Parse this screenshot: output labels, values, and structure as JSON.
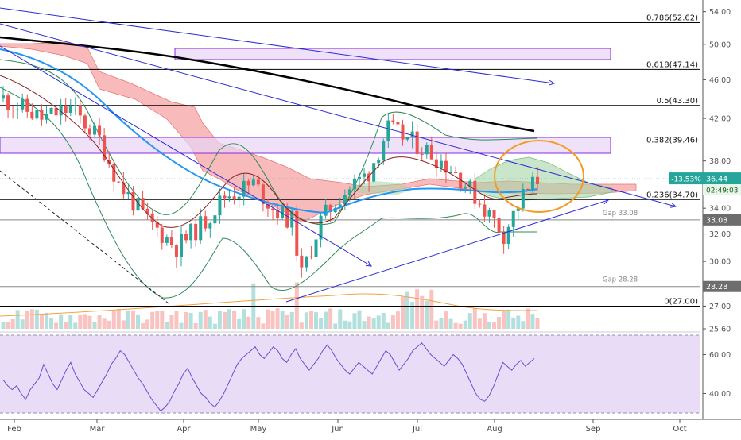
{
  "colors": {
    "background": "#ffffff",
    "candle_up": "#26a69a",
    "candle_down": "#ef5350",
    "ichimoku_bear_cloud": "#f5a3a3",
    "ichimoku_bull_cloud": "#a5d6a7",
    "bollinger": "#2e8b57",
    "ma_50": "#2196f3",
    "ma_200": "#000000",
    "ma_20": "#8b2020",
    "trendline": "#2b2bd6",
    "fib_line": "#000000",
    "box_fill": "#e8d6f5",
    "box_stroke": "#8a2be2",
    "ellipse": "#f59a23",
    "rsi_band": "#e9dcf7",
    "rsi_line": "#6a4dd1",
    "volume_ma": "#f5a142",
    "price_badge": "#26a69a"
  },
  "chart_data": [
    {
      "type": "candlestick",
      "title": "",
      "x_axis": {
        "tick_labels": [
          "Feb",
          "Mar",
          "Apr",
          "May",
          "Jun",
          "Jul",
          "Aug",
          "Sep",
          "Oct"
        ]
      },
      "y_axis": {
        "scale": "log",
        "range": [
          25.6,
          55.5
        ],
        "tick_labels": [
          "25.60",
          "27.00",
          "30.00",
          "32.00",
          "34.00",
          "38.00",
          "42.00",
          "46.00",
          "50.00",
          "54.00"
        ]
      },
      "fibonacci_levels": [
        {
          "label": "0.786(52.62)",
          "value": 52.62
        },
        {
          "label": "0.618(47.14)",
          "value": 47.14
        },
        {
          "label": "0.5(43.30)",
          "value": 43.3
        },
        {
          "label": "0.382(39.46)",
          "value": 39.46
        },
        {
          "label": "0.236(34.70)",
          "value": 34.7
        },
        {
          "label": "0(27.00)",
          "value": 27.0
        }
      ],
      "gaps": [
        {
          "label": "Gap 33.08",
          "value": 33.08
        },
        {
          "label": "Gap 28.28",
          "value": 28.28
        }
      ],
      "price_tags": [
        {
          "change": "-13.53%",
          "price": "36.44",
          "countdown": "02:49:03"
        },
        {
          "price": "33.08"
        },
        {
          "price": "28.28"
        }
      ],
      "indicators": [
        "Ichimoku Cloud",
        "Bollinger Bands",
        "MA 20",
        "MA 50",
        "MA 200",
        "Volume"
      ],
      "annotations": [
        "descending trendlines",
        "ascending support trendline",
        "resistance boxes",
        "consolidation ellipse"
      ],
      "grid": false,
      "legend": "none"
    },
    {
      "type": "line",
      "title": "",
      "y_axis": {
        "range": [
          30,
          70
        ],
        "tick_labels": [
          "60.00",
          "40.00"
        ],
        "band": [
          30,
          70
        ]
      },
      "series": [
        {
          "name": "",
          "values": [
            47,
            44,
            42,
            44,
            40,
            37,
            42,
            45,
            48,
            55,
            50,
            45,
            42,
            47,
            52,
            56,
            50,
            46,
            42,
            40,
            38,
            42,
            46,
            50,
            55,
            58,
            62,
            60,
            56,
            52,
            48,
            45,
            41,
            37,
            34,
            31,
            33,
            36,
            41,
            45,
            50,
            53,
            48,
            44,
            40,
            38,
            35,
            33,
            36,
            40,
            45,
            50,
            55,
            58,
            60,
            62,
            64,
            60,
            58,
            61,
            64,
            62,
            58,
            56,
            60,
            63,
            58,
            55,
            52,
            55,
            58,
            62,
            65,
            62,
            58,
            55,
            52,
            50,
            53,
            56,
            54,
            52,
            50,
            54,
            58,
            62,
            60,
            56,
            52,
            55,
            58,
            62,
            64,
            66,
            63,
            60,
            58,
            56,
            54,
            57,
            60,
            58,
            55,
            50,
            45,
            40,
            37,
            36,
            39,
            44,
            50,
            56,
            54,
            52,
            55,
            57,
            54,
            56,
            58
          ]
        }
      ]
    }
  ]
}
